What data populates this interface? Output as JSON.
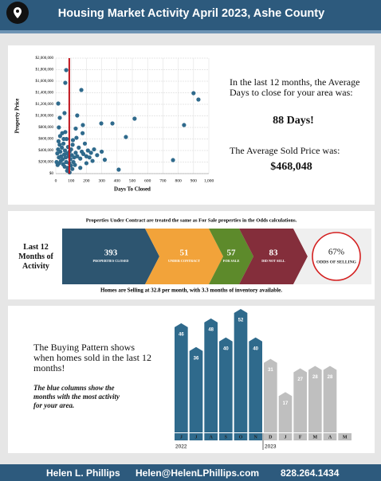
{
  "header": {
    "title": "Housing Market Activity April 2023, Ashe County"
  },
  "chart_data": [
    {
      "type": "scatter",
      "xlabel": "Days To Closed",
      "ylabel": "Property Price",
      "color": "#2f6a8c",
      "reference_x": 88,
      "reference_color": "#c0141c",
      "grid": true,
      "xlim": [
        0,
        1000
      ],
      "ylim": [
        0,
        2000000
      ],
      "xticks": [
        0,
        100,
        200,
        300,
        400,
        500,
        600,
        700,
        800,
        900,
        {
          "value": 1000,
          "label": "1,000"
        }
      ],
      "yticks": [
        {
          "value": 0,
          "label": "$0"
        },
        {
          "value": 200000,
          "label": "$200,000"
        },
        {
          "value": 400000,
          "label": "$400,000"
        },
        {
          "value": 600000,
          "label": "$600,000"
        },
        {
          "value": 800000,
          "label": "$800,000"
        },
        {
          "value": 1000000,
          "label": "$1,000,000"
        },
        {
          "value": 1200000,
          "label": "$1,200,000"
        },
        {
          "value": 1400000,
          "label": "$1,400,000"
        },
        {
          "value": 1600000,
          "label": "$1,600,000"
        },
        {
          "value": 1800000,
          "label": "$1,800,000"
        },
        {
          "value": 2000000,
          "label": "$2,000,000"
        }
      ],
      "x": [
        68,
        62,
        16,
        167,
        900,
        932,
        515,
        140,
        57,
        838,
        370,
        297,
        458,
        766,
        411,
        177,
        26,
        10,
        15,
        20,
        25,
        30,
        35,
        40,
        45,
        50,
        55,
        60,
        65,
        70,
        75,
        80,
        85,
        90,
        95,
        100,
        105,
        110,
        120,
        130,
        140,
        150,
        160,
        170,
        180,
        190,
        200,
        210,
        220,
        230,
        250,
        270,
        300,
        5,
        12,
        22,
        33,
        48,
        58,
        68,
        78,
        88,
        98,
        115,
        125,
        28,
        42,
        62,
        18,
        52,
        112,
        135,
        74,
        90,
        108,
        160,
        200,
        240,
        320,
        130,
        20,
        175
      ],
      "y": [
        1793000,
        1572000,
        1214000,
        1448000,
        1393000,
        1283000,
        952000,
        1007000,
        1048000,
        841000,
        869000,
        869000,
        634000,
        234000,
        69000,
        841000,
        966000,
        350000,
        420000,
        280000,
        500000,
        380000,
        300000,
        450000,
        250000,
        520000,
        330000,
        400000,
        280000,
        600000,
        350000,
        460000,
        300000,
        380000,
        250000,
        420000,
        320000,
        500000,
        280000,
        360000,
        300000,
        450000,
        260000,
        380000,
        340000,
        520000,
        300000,
        400000,
        280000,
        360000,
        420000,
        320000,
        380000,
        200000,
        150000,
        180000,
        220000,
        160000,
        120000,
        200000,
        100000,
        180000,
        140000,
        200000,
        150000,
        650000,
        700000,
        720000,
        560000,
        600000,
        580000,
        620000,
        50000,
        20000,
        80000,
        100000,
        180000,
        220000,
        240000,
        780000,
        800000,
        700000
      ]
    },
    {
      "type": "bar",
      "categories": [
        "J",
        "J",
        "A",
        "S",
        "O",
        "N",
        "D",
        "J",
        "F",
        "M",
        "A",
        "M"
      ],
      "values": [
        46,
        36,
        48,
        40,
        52,
        40,
        31,
        17,
        27,
        28,
        28,
        null
      ],
      "colors": [
        "#2f6a8c",
        "#2f6a8c",
        "#2f6a8c",
        "#2f6a8c",
        "#2f6a8c",
        "#2f6a8c",
        "#bfbfbf",
        "#bfbfbf",
        "#bfbfbf",
        "#bfbfbf",
        "#bfbfbf",
        "#bfbfbf"
      ],
      "years": [
        "2022",
        null,
        null,
        null,
        null,
        null,
        "2023",
        null,
        null,
        null,
        null,
        null
      ]
    }
  ],
  "stats": {
    "days_text": "In the last 12 months, the Average Days to close for your area was:",
    "days_value": "88 Days!",
    "price_text": "The Average Sold Price was:",
    "price_value": "$468,048"
  },
  "activity": {
    "note": "Properties Under Contract are treated the same as For Sale properties in the Odds calculations.",
    "label": "Last 12 Months of Activity",
    "steps": [
      {
        "value": "393",
        "label": "PROPERTIES CLOSED",
        "color": "#2d5570"
      },
      {
        "value": "51",
        "label": "UNDER CONTRACT",
        "color": "#f2a33a"
      },
      {
        "value": "57",
        "label": "FOR SALE",
        "color": "#5d8a2b"
      },
      {
        "value": "83",
        "label": "DID NOT SELL",
        "color": "#842e3b"
      }
    ],
    "odds": {
      "value": "67%",
      "label": "ODDS OF SELLING"
    },
    "footnote": "Homes are Selling at 32.8 per month, with 3.3 months of inventory available."
  },
  "pattern": {
    "text": "The Buying Pattern shows when homes sold in the last 12 months!",
    "note": "The blue columns show the months with the most activity for your area."
  },
  "footer": {
    "name": "Helen L. Phillips",
    "email": "Helen@HelenLPhillips.com",
    "phone": "828.264.1434"
  }
}
